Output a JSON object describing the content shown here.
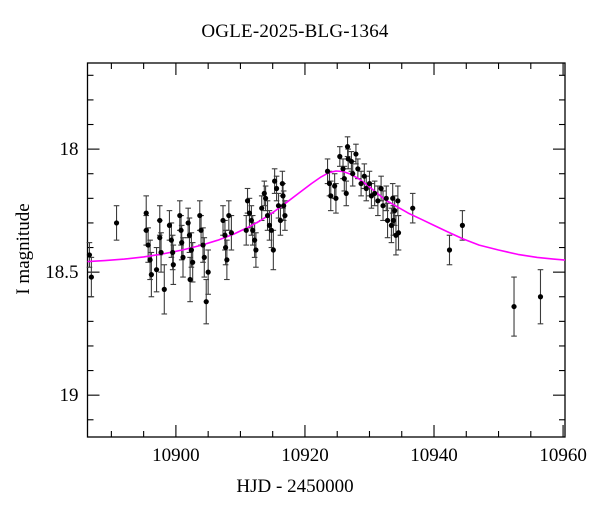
{
  "page": {
    "background": "#ffffff"
  },
  "chart_data": {
    "type": "scatter",
    "title": "OGLE-2025-BLG-1364",
    "xlabel": "HJD - 2450000",
    "ylabel": "I magnitude",
    "xlim": [
      10886.3,
      10960.3
    ],
    "ylim": [
      17.65,
      19.17
    ],
    "y_axis_inverted": true,
    "grid": false,
    "legend": "none",
    "x_ticks_major": [
      10900,
      10920,
      10940,
      10960
    ],
    "x_tick_labels": [
      "10900",
      "10920",
      "10940",
      "10960"
    ],
    "x_minor_step": 5,
    "y_ticks_major": [
      18,
      18.5,
      19
    ],
    "y_tick_labels": [
      "18",
      "18.5",
      "19"
    ],
    "y_minor_step": 0.1,
    "colors": {
      "frame": "#000000",
      "points": "#000000",
      "error_bars": "#3c3c3c",
      "model_curve": "#ff00ff"
    },
    "series": [
      {
        "name": "I-band photometry",
        "type": "scatter_errorbar",
        "point_format": [
          "hjd",
          "mag",
          "err"
        ],
        "points": [
          [
            10886.6,
            18.43,
            0.05
          ],
          [
            10886.9,
            18.52,
            0.08
          ],
          [
            10890.8,
            18.3,
            0.07
          ],
          [
            10895.4,
            18.26,
            0.07
          ],
          [
            10895.4,
            18.33,
            0.06
          ],
          [
            10895.7,
            18.39,
            0.07
          ],
          [
            10896.0,
            18.45,
            0.08
          ],
          [
            10896.2,
            18.51,
            0.09
          ],
          [
            10897.0,
            18.49,
            0.09
          ],
          [
            10897.5,
            18.29,
            0.06
          ],
          [
            10897.5,
            18.36,
            0.07
          ],
          [
            10897.7,
            18.42,
            0.08
          ],
          [
            10898.2,
            18.57,
            0.1
          ],
          [
            10899.0,
            18.31,
            0.06
          ],
          [
            10899.3,
            18.37,
            0.07
          ],
          [
            10899.5,
            18.42,
            0.07
          ],
          [
            10899.6,
            18.47,
            0.08
          ],
          [
            10900.6,
            18.27,
            0.06
          ],
          [
            10900.8,
            18.33,
            0.06
          ],
          [
            10900.9,
            18.38,
            0.07
          ],
          [
            10901.1,
            18.44,
            0.08
          ],
          [
            10901.9,
            18.3,
            0.06
          ],
          [
            10902.1,
            18.35,
            0.07
          ],
          [
            10902.2,
            18.53,
            0.09
          ],
          [
            10902.4,
            18.41,
            0.07
          ],
          [
            10902.6,
            18.46,
            0.08
          ],
          [
            10903.7,
            18.27,
            0.06
          ],
          [
            10903.9,
            18.33,
            0.06
          ],
          [
            10904.2,
            18.39,
            0.07
          ],
          [
            10904.4,
            18.44,
            0.08
          ],
          [
            10904.7,
            18.62,
            0.09
          ],
          [
            10905.0,
            18.5,
            0.09
          ],
          [
            10907.3,
            18.29,
            0.06
          ],
          [
            10907.6,
            18.35,
            0.06
          ],
          [
            10907.7,
            18.4,
            0.07
          ],
          [
            10907.9,
            18.45,
            0.08
          ],
          [
            10908.2,
            18.27,
            0.06
          ],
          [
            10908.6,
            18.34,
            0.07
          ],
          [
            10910.9,
            18.33,
            0.06
          ],
          [
            10911.1,
            18.21,
            0.05
          ],
          [
            10911.4,
            18.26,
            0.06
          ],
          [
            10911.7,
            18.29,
            0.06
          ],
          [
            10911.9,
            18.33,
            0.06
          ],
          [
            10912.2,
            18.37,
            0.07
          ],
          [
            10912.4,
            18.41,
            0.07
          ],
          [
            10913.3,
            18.24,
            0.05
          ],
          [
            10913.7,
            18.18,
            0.05
          ],
          [
            10913.9,
            18.2,
            0.05
          ],
          [
            10914.2,
            18.27,
            0.06
          ],
          [
            10914.5,
            18.31,
            0.06
          ],
          [
            10914.8,
            18.33,
            0.07
          ],
          [
            10915.1,
            18.41,
            0.08
          ],
          [
            10915.3,
            18.13,
            0.05
          ],
          [
            10915.6,
            18.16,
            0.05
          ],
          [
            10915.9,
            18.23,
            0.05
          ],
          [
            10916.2,
            18.29,
            0.06
          ],
          [
            10916.5,
            18.14,
            0.05
          ],
          [
            10916.6,
            18.19,
            0.05
          ],
          [
            10916.7,
            18.23,
            0.06
          ],
          [
            10916.9,
            18.27,
            0.06
          ],
          [
            10923.5,
            18.09,
            0.05
          ],
          [
            10923.8,
            18.14,
            0.05
          ],
          [
            10924.0,
            18.19,
            0.06
          ],
          [
            10924.6,
            18.15,
            0.05
          ],
          [
            10924.8,
            18.2,
            0.06
          ],
          [
            10925.4,
            18.03,
            0.04
          ],
          [
            10925.9,
            18.08,
            0.04
          ],
          [
            10926.1,
            18.12,
            0.05
          ],
          [
            10926.4,
            18.18,
            0.05
          ],
          [
            10926.6,
            17.99,
            0.04
          ],
          [
            10926.7,
            18.04,
            0.04
          ],
          [
            10927.2,
            18.05,
            0.04
          ],
          [
            10927.4,
            18.1,
            0.05
          ],
          [
            10927.9,
            18.02,
            0.04
          ],
          [
            10928.2,
            18.08,
            0.04
          ],
          [
            10928.7,
            18.14,
            0.05
          ],
          [
            10929.2,
            18.11,
            0.05
          ],
          [
            10929.5,
            18.16,
            0.05
          ],
          [
            10930.0,
            18.14,
            0.05
          ],
          [
            10930.3,
            18.19,
            0.05
          ],
          [
            10930.8,
            18.18,
            0.05
          ],
          [
            10931.3,
            18.21,
            0.06
          ],
          [
            10931.8,
            18.16,
            0.05
          ],
          [
            10932.1,
            18.23,
            0.06
          ],
          [
            10932.6,
            18.2,
            0.05
          ],
          [
            10932.8,
            18.29,
            0.07
          ],
          [
            10933.4,
            18.31,
            0.07
          ],
          [
            10933.6,
            18.2,
            0.06
          ],
          [
            10933.7,
            18.29,
            0.06
          ],
          [
            10933.9,
            18.25,
            0.06
          ],
          [
            10934.1,
            18.35,
            0.08
          ],
          [
            10934.4,
            18.21,
            0.06
          ],
          [
            10934.5,
            18.34,
            0.07
          ],
          [
            10936.7,
            18.24,
            0.06
          ],
          [
            10942.4,
            18.41,
            0.06
          ],
          [
            10944.4,
            18.31,
            0.06
          ],
          [
            10952.4,
            18.64,
            0.12
          ],
          [
            10956.5,
            18.6,
            0.11
          ]
        ]
      },
      {
        "name": "microlensing model",
        "type": "line",
        "point_format": [
          "hjd",
          "mag"
        ],
        "points": [
          [
            10886.3,
            18.457
          ],
          [
            10889,
            18.453
          ],
          [
            10892,
            18.447
          ],
          [
            10895,
            18.438
          ],
          [
            10898,
            18.426
          ],
          [
            10901,
            18.41
          ],
          [
            10904,
            18.39
          ],
          [
            10906.5,
            18.37
          ],
          [
            10909,
            18.345
          ],
          [
            10911,
            18.32
          ],
          [
            10913,
            18.292
          ],
          [
            10915,
            18.258
          ],
          [
            10917,
            18.22
          ],
          [
            10919,
            18.18
          ],
          [
            10921,
            18.14
          ],
          [
            10922.5,
            18.113
          ],
          [
            10923.7,
            18.096
          ],
          [
            10924.8,
            18.089
          ],
          [
            10925.9,
            18.091
          ],
          [
            10927,
            18.101
          ],
          [
            10928.3,
            18.12
          ],
          [
            10929.6,
            18.145
          ],
          [
            10931,
            18.175
          ],
          [
            10932.5,
            18.207
          ],
          [
            10934,
            18.23
          ],
          [
            10936,
            18.26
          ],
          [
            10938,
            18.285
          ],
          [
            10940,
            18.31
          ],
          [
            10942,
            18.335
          ],
          [
            10944.5,
            18.365
          ],
          [
            10947,
            18.39
          ],
          [
            10950,
            18.41
          ],
          [
            10953,
            18.428
          ],
          [
            10956,
            18.44
          ],
          [
            10958.5,
            18.447
          ],
          [
            10960.3,
            18.451
          ]
        ]
      }
    ]
  }
}
